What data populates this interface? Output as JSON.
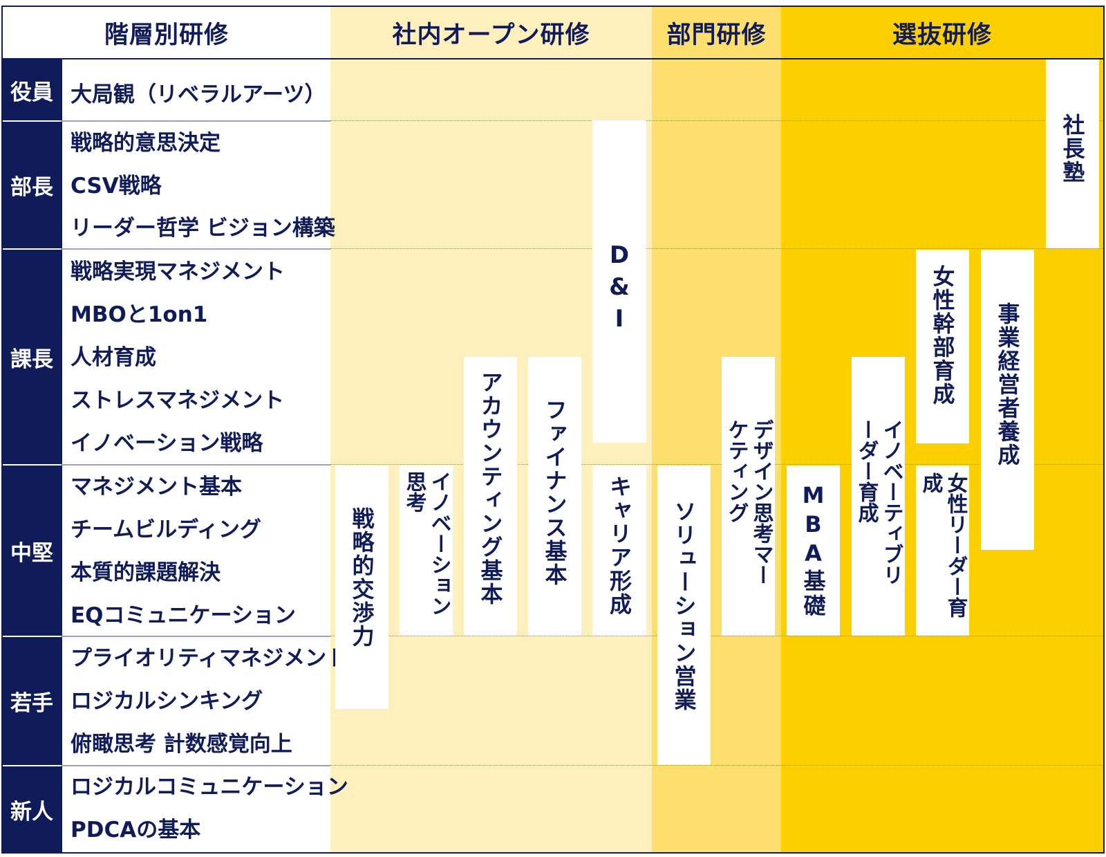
{
  "header": {
    "tiered": "階層別研修",
    "open": "社内オープン研修",
    "department": "部門研修",
    "selective": "選抜研修"
  },
  "colors": {
    "navy": "#101c5a",
    "open_bg": "#fef0bd",
    "department_bg": "#fddf6e",
    "selective_bg": "#fccf00"
  },
  "levels": {
    "executive": "役員",
    "general_manager": "部長",
    "section_manager": "課長",
    "mid_level": "中堅",
    "junior": "若手",
    "new_hire": "新人"
  },
  "topics": {
    "executive": [
      "大局観（リベラルアーツ）"
    ],
    "general_manager": [
      "戦略的意思決定",
      "CSV戦略",
      "リーダー哲学 ビジョン構築"
    ],
    "section_manager": [
      "戦略実現マネジメント",
      "MBOと1on1",
      "人材育成",
      "ストレスマネジメント",
      "イノベーション戦略"
    ],
    "mid_level": [
      "マネジメント基本",
      "チームビルディング",
      "本質的課題解決",
      "EQコミュニケーション"
    ],
    "junior": [
      "プライオリティマネジメント",
      "ロジカルシンキング",
      "俯瞰思考 計数感覚向上"
    ],
    "new_hire": [
      "ロジカルコミュニケーション",
      "PDCAの基本"
    ]
  },
  "open_programs": {
    "strategic_negotiation": "戦略的交渉力",
    "innovation_thinking": "イノベーション思考",
    "accounting": "アカウンティング基本",
    "finance": "ファイナンス基本",
    "dni": "D&I",
    "career": "キャリア形成"
  },
  "department_programs": {
    "solution_sales": "ソリューション営業",
    "design_marketing": "デザイン思考マーケティング"
  },
  "selective_programs": {
    "mba": "MBA基礎",
    "innovative_leader": "イノベーティブリーダー育成",
    "women_leader": "女性リーダー育成",
    "women_executive": "女性幹部育成",
    "business_manager": "事業経営者養成",
    "president_school": "社長塾"
  }
}
